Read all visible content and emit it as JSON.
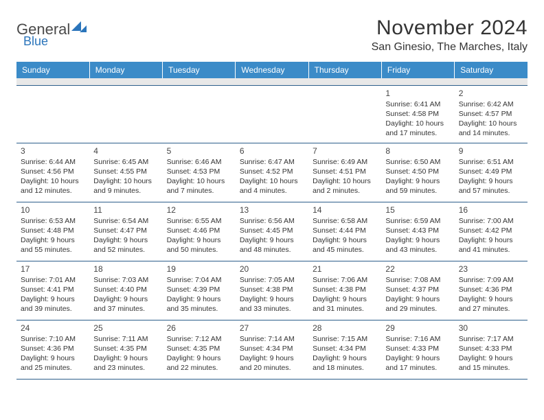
{
  "logo": {
    "text_general": "General",
    "text_blue": "Blue"
  },
  "title": "November 2024",
  "location": "San Ginesio, The Marches, Italy",
  "day_headers": [
    "Sunday",
    "Monday",
    "Tuesday",
    "Wednesday",
    "Thursday",
    "Friday",
    "Saturday"
  ],
  "colors": {
    "header_bg": "#3b8bc8",
    "header_text": "#ffffff",
    "spacer_bg": "#e8e8e8",
    "cell_border": "#2b5d8a",
    "text": "#333333"
  },
  "typography": {
    "title_fontsize": 30,
    "location_fontsize": 16,
    "header_fontsize": 12,
    "daynum_fontsize": 12,
    "cell_fontsize": 10.5
  },
  "weeks": [
    [
      null,
      null,
      null,
      null,
      null,
      {
        "num": "1",
        "sunrise": "Sunrise: 6:41 AM",
        "sunset": "Sunset: 4:58 PM",
        "daylight": "Daylight: 10 hours and 17 minutes."
      },
      {
        "num": "2",
        "sunrise": "Sunrise: 6:42 AM",
        "sunset": "Sunset: 4:57 PM",
        "daylight": "Daylight: 10 hours and 14 minutes."
      }
    ],
    [
      {
        "num": "3",
        "sunrise": "Sunrise: 6:44 AM",
        "sunset": "Sunset: 4:56 PM",
        "daylight": "Daylight: 10 hours and 12 minutes."
      },
      {
        "num": "4",
        "sunrise": "Sunrise: 6:45 AM",
        "sunset": "Sunset: 4:55 PM",
        "daylight": "Daylight: 10 hours and 9 minutes."
      },
      {
        "num": "5",
        "sunrise": "Sunrise: 6:46 AM",
        "sunset": "Sunset: 4:53 PM",
        "daylight": "Daylight: 10 hours and 7 minutes."
      },
      {
        "num": "6",
        "sunrise": "Sunrise: 6:47 AM",
        "sunset": "Sunset: 4:52 PM",
        "daylight": "Daylight: 10 hours and 4 minutes."
      },
      {
        "num": "7",
        "sunrise": "Sunrise: 6:49 AM",
        "sunset": "Sunset: 4:51 PM",
        "daylight": "Daylight: 10 hours and 2 minutes."
      },
      {
        "num": "8",
        "sunrise": "Sunrise: 6:50 AM",
        "sunset": "Sunset: 4:50 PM",
        "daylight": "Daylight: 9 hours and 59 minutes."
      },
      {
        "num": "9",
        "sunrise": "Sunrise: 6:51 AM",
        "sunset": "Sunset: 4:49 PM",
        "daylight": "Daylight: 9 hours and 57 minutes."
      }
    ],
    [
      {
        "num": "10",
        "sunrise": "Sunrise: 6:53 AM",
        "sunset": "Sunset: 4:48 PM",
        "daylight": "Daylight: 9 hours and 55 minutes."
      },
      {
        "num": "11",
        "sunrise": "Sunrise: 6:54 AM",
        "sunset": "Sunset: 4:47 PM",
        "daylight": "Daylight: 9 hours and 52 minutes."
      },
      {
        "num": "12",
        "sunrise": "Sunrise: 6:55 AM",
        "sunset": "Sunset: 4:46 PM",
        "daylight": "Daylight: 9 hours and 50 minutes."
      },
      {
        "num": "13",
        "sunrise": "Sunrise: 6:56 AM",
        "sunset": "Sunset: 4:45 PM",
        "daylight": "Daylight: 9 hours and 48 minutes."
      },
      {
        "num": "14",
        "sunrise": "Sunrise: 6:58 AM",
        "sunset": "Sunset: 4:44 PM",
        "daylight": "Daylight: 9 hours and 45 minutes."
      },
      {
        "num": "15",
        "sunrise": "Sunrise: 6:59 AM",
        "sunset": "Sunset: 4:43 PM",
        "daylight": "Daylight: 9 hours and 43 minutes."
      },
      {
        "num": "16",
        "sunrise": "Sunrise: 7:00 AM",
        "sunset": "Sunset: 4:42 PM",
        "daylight": "Daylight: 9 hours and 41 minutes."
      }
    ],
    [
      {
        "num": "17",
        "sunrise": "Sunrise: 7:01 AM",
        "sunset": "Sunset: 4:41 PM",
        "daylight": "Daylight: 9 hours and 39 minutes."
      },
      {
        "num": "18",
        "sunrise": "Sunrise: 7:03 AM",
        "sunset": "Sunset: 4:40 PM",
        "daylight": "Daylight: 9 hours and 37 minutes."
      },
      {
        "num": "19",
        "sunrise": "Sunrise: 7:04 AM",
        "sunset": "Sunset: 4:39 PM",
        "daylight": "Daylight: 9 hours and 35 minutes."
      },
      {
        "num": "20",
        "sunrise": "Sunrise: 7:05 AM",
        "sunset": "Sunset: 4:38 PM",
        "daylight": "Daylight: 9 hours and 33 minutes."
      },
      {
        "num": "21",
        "sunrise": "Sunrise: 7:06 AM",
        "sunset": "Sunset: 4:38 PM",
        "daylight": "Daylight: 9 hours and 31 minutes."
      },
      {
        "num": "22",
        "sunrise": "Sunrise: 7:08 AM",
        "sunset": "Sunset: 4:37 PM",
        "daylight": "Daylight: 9 hours and 29 minutes."
      },
      {
        "num": "23",
        "sunrise": "Sunrise: 7:09 AM",
        "sunset": "Sunset: 4:36 PM",
        "daylight": "Daylight: 9 hours and 27 minutes."
      }
    ],
    [
      {
        "num": "24",
        "sunrise": "Sunrise: 7:10 AM",
        "sunset": "Sunset: 4:36 PM",
        "daylight": "Daylight: 9 hours and 25 minutes."
      },
      {
        "num": "25",
        "sunrise": "Sunrise: 7:11 AM",
        "sunset": "Sunset: 4:35 PM",
        "daylight": "Daylight: 9 hours and 23 minutes."
      },
      {
        "num": "26",
        "sunrise": "Sunrise: 7:12 AM",
        "sunset": "Sunset: 4:35 PM",
        "daylight": "Daylight: 9 hours and 22 minutes."
      },
      {
        "num": "27",
        "sunrise": "Sunrise: 7:14 AM",
        "sunset": "Sunset: 4:34 PM",
        "daylight": "Daylight: 9 hours and 20 minutes."
      },
      {
        "num": "28",
        "sunrise": "Sunrise: 7:15 AM",
        "sunset": "Sunset: 4:34 PM",
        "daylight": "Daylight: 9 hours and 18 minutes."
      },
      {
        "num": "29",
        "sunrise": "Sunrise: 7:16 AM",
        "sunset": "Sunset: 4:33 PM",
        "daylight": "Daylight: 9 hours and 17 minutes."
      },
      {
        "num": "30",
        "sunrise": "Sunrise: 7:17 AM",
        "sunset": "Sunset: 4:33 PM",
        "daylight": "Daylight: 9 hours and 15 minutes."
      }
    ]
  ]
}
